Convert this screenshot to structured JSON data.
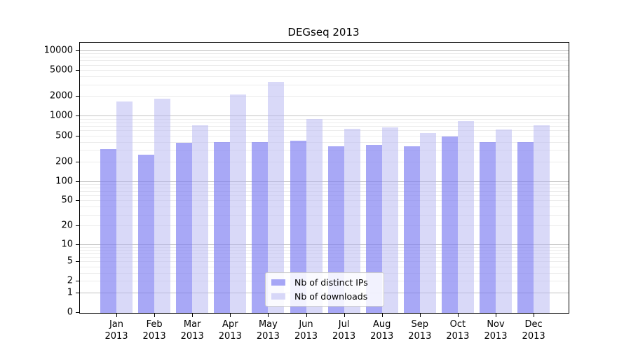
{
  "title": "DEGseq 2013",
  "chart_data": {
    "type": "bar",
    "title": "DEGseq 2013",
    "categories": [
      "Jan 2013",
      "Feb 2013",
      "Mar 2013",
      "Apr 2013",
      "May 2013",
      "Jun 2013",
      "Jul 2013",
      "Aug 2013",
      "Sep 2013",
      "Oct 2013",
      "Nov 2013",
      "Dec 2013"
    ],
    "series": [
      {
        "name": "Nb of distinct IPs",
        "color": "rgba(123,123,241,0.66)",
        "values": [
          310,
          255,
          385,
          400,
          400,
          415,
          340,
          355,
          340,
          485,
          395,
          400
        ]
      },
      {
        "name": "Nb of downloads",
        "color": "rgba(179,179,241,0.50)",
        "values": [
          1650,
          1830,
          720,
          2100,
          3270,
          900,
          640,
          665,
          545,
          840,
          620,
          720
        ]
      }
    ],
    "y_scale": "log1p",
    "y_ticks": [
      10000,
      5000,
      2000,
      1000,
      500,
      200,
      100,
      50,
      20,
      10,
      5,
      2,
      1,
      0
    ],
    "ylim": [
      0,
      13000
    ],
    "grid": true,
    "grid_major_color": "#c2c2c2",
    "grid_minor_color": "#ececec",
    "legend_position": "inside-bottom-center",
    "xlabel": "",
    "ylabel": ""
  }
}
